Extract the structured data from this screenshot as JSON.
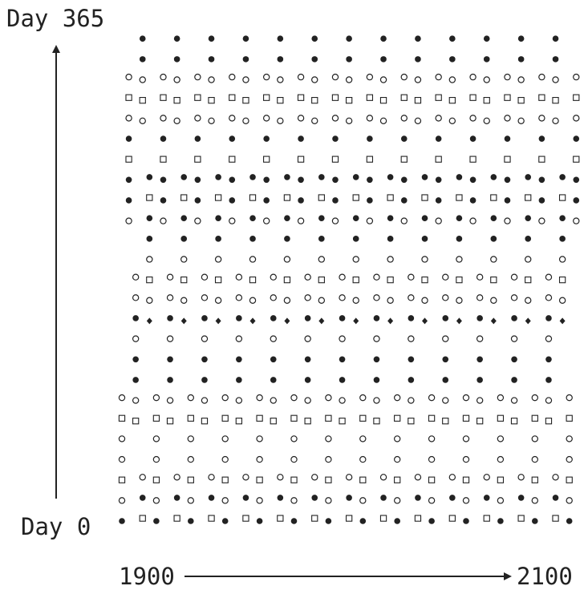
{
  "chart_data": {
    "type": "scatter",
    "title": "",
    "xlabel": "",
    "ylabel": "",
    "x_range": [
      1900,
      2100
    ],
    "y_range": [
      0,
      365
    ],
    "axis_labels": {
      "y_top": "Day 365",
      "y_bottom": "Day 0",
      "x_left": "1900",
      "x_right": "2100"
    },
    "x_min": 1900,
    "x_max": 2100,
    "y_min": 0,
    "y_max": 365,
    "grid": false,
    "legend": "none",
    "colors": {
      "ink": "#222222",
      "background": "#ffffff"
    },
    "marker_types": [
      "filled-circle",
      "open-circle",
      "open-square",
      "filled-diamond"
    ],
    "drift_days_per_year": 73,
    "marker_pattern": [
      [
        "filled-circle",
        "open-circle",
        "open-square",
        "open-circle",
        "open-circle",
        "open-square",
        "open-circle"
      ],
      [
        "open-circle",
        "filled-circle",
        "filled-circle",
        "open-square",
        "filled-circle",
        "open-circle",
        "open-square",
        "open-circle"
      ],
      [
        "open-square",
        "open-circle",
        "filled-circle",
        "filled-circle",
        "open-circle",
        "filled-circle",
        "open-circle",
        "open-circle"
      ],
      [
        "open-circle",
        "open-square",
        "open-circle",
        "filled-circle",
        "filled-circle",
        "open-square",
        "filled-circle",
        "open-circle"
      ],
      [
        "filled-diamond",
        "open-circle",
        "open-square",
        "open-circle",
        "filled-circle",
        "filled-circle",
        "open-square",
        "filled-circle"
      ]
    ],
    "note": "Markers plotted for each year (x) at several days of year (y); each year's sequence drifts up the day axis and wraps from Day 365 back to Day 0, producing diagonal bands."
  }
}
